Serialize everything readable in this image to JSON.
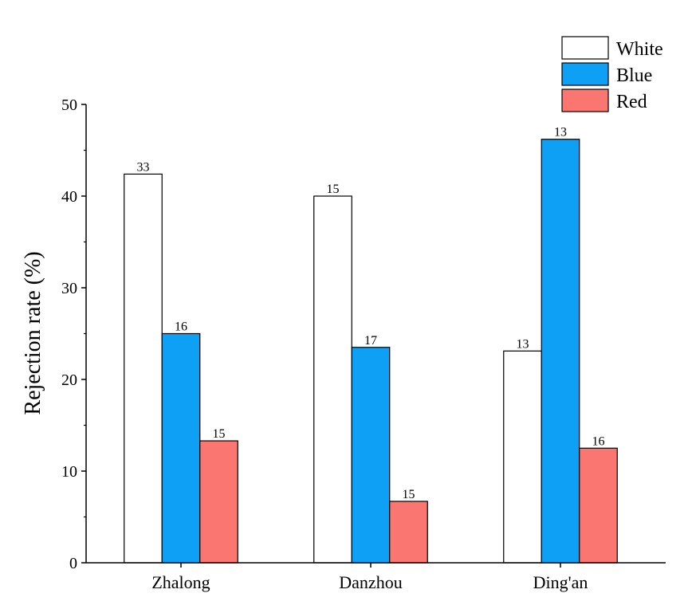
{
  "chart_data": {
    "type": "bar",
    "title": "",
    "xlabel": "",
    "ylabel": "Rejection rate (%)",
    "ylim": [
      0,
      50
    ],
    "yticks": [
      0,
      10,
      20,
      30,
      40,
      50
    ],
    "categories": [
      "Zhalong",
      "Danzhou",
      "Ding'an"
    ],
    "series": [
      {
        "name": "White",
        "color": "#ffffff",
        "values": [
          42.4,
          40.0,
          23.1
        ],
        "labels": [
          "33",
          "15",
          "13"
        ]
      },
      {
        "name": "Blue",
        "color": "#0da0f5",
        "values": [
          25.0,
          23.5,
          46.2
        ],
        "labels": [
          "16",
          "17",
          "13"
        ]
      },
      {
        "name": "Red",
        "color": "#f97671",
        "values": [
          13.3,
          6.7,
          12.5
        ],
        "labels": [
          "15",
          "15",
          "16"
        ]
      }
    ],
    "legend_position": "top-right",
    "grid": false
  }
}
